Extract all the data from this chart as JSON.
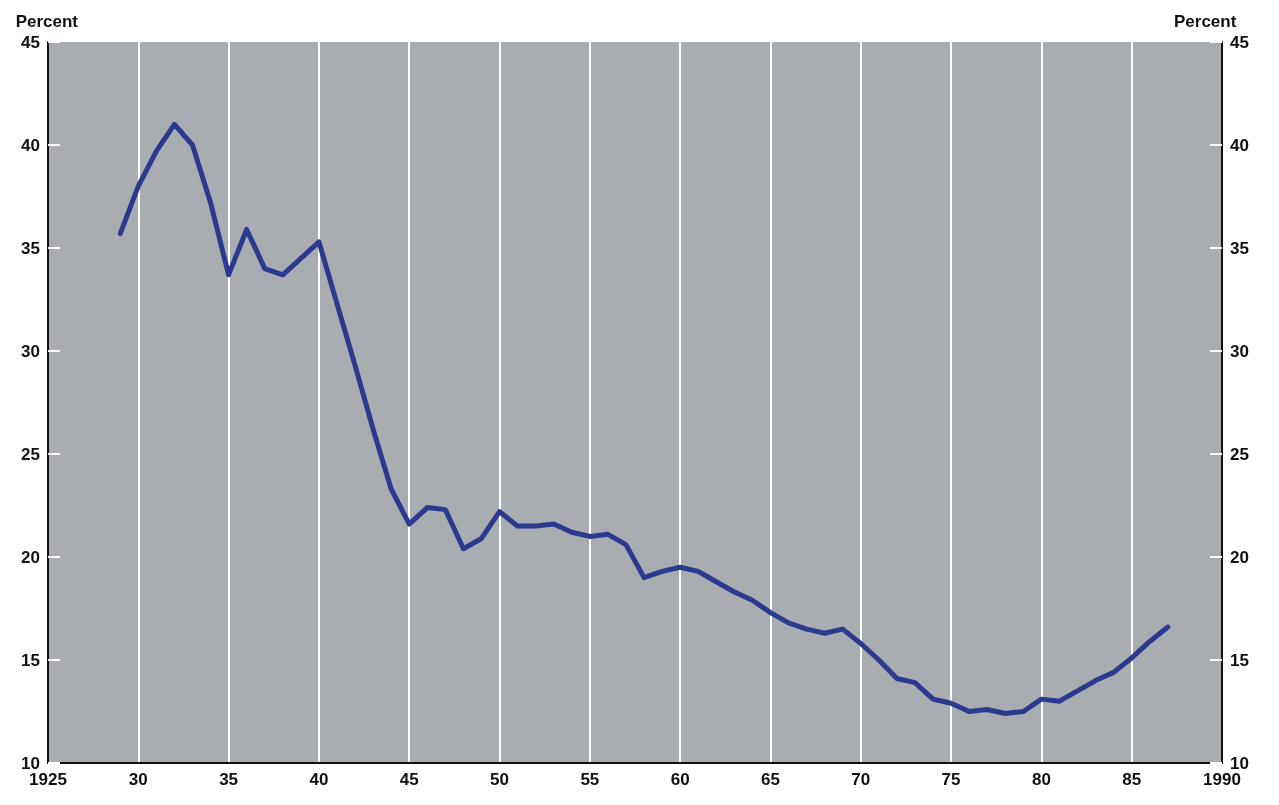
{
  "chart_data": {
    "type": "line",
    "ylabel": "Percent",
    "y2label": "Percent",
    "x": [
      1929,
      1930,
      1931,
      1932,
      1933,
      1934,
      1935,
      1936,
      1937,
      1938,
      1939,
      1940,
      1941,
      1942,
      1943,
      1944,
      1945,
      1946,
      1947,
      1948,
      1949,
      1950,
      1951,
      1952,
      1953,
      1954,
      1955,
      1956,
      1957,
      1958,
      1959,
      1960,
      1961,
      1962,
      1963,
      1964,
      1965,
      1966,
      1967,
      1968,
      1969,
      1970,
      1971,
      1972,
      1973,
      1974,
      1975,
      1976,
      1977,
      1978,
      1979,
      1980,
      1981,
      1982,
      1983,
      1984,
      1985,
      1986,
      1987
    ],
    "series": [
      {
        "color": "#2b3a8f",
        "values": [
          35.7,
          38.0,
          39.7,
          41.0,
          40.0,
          37.2,
          33.7,
          35.9,
          34.0,
          33.7,
          34.5,
          35.3,
          32.3,
          29.3,
          26.2,
          23.3,
          21.6,
          22.4,
          22.3,
          20.4,
          20.9,
          22.2,
          21.5,
          21.5,
          21.6,
          21.2,
          21.0,
          21.1,
          20.6,
          19.0,
          19.3,
          19.5,
          19.3,
          18.8,
          18.3,
          17.9,
          17.3,
          16.8,
          16.5,
          16.3,
          16.5,
          15.8,
          15.0,
          14.1,
          13.9,
          13.1,
          12.9,
          12.5,
          12.6,
          12.4,
          12.5,
          13.1,
          13.0,
          13.5,
          14.0,
          14.4,
          15.1,
          15.9,
          16.6
        ]
      }
    ],
    "xlim": [
      1925,
      1990
    ],
    "xticks": [
      1925,
      {
        "value": 1930,
        "label": "30"
      },
      {
        "value": 1935,
        "label": "35"
      },
      {
        "value": 1940,
        "label": "40"
      },
      {
        "value": 1945,
        "label": "45"
      },
      {
        "value": 1950,
        "label": "50"
      },
      {
        "value": 1955,
        "label": "55"
      },
      {
        "value": 1960,
        "label": "60"
      },
      {
        "value": 1965,
        "label": "65"
      },
      {
        "value": 1970,
        "label": "70"
      },
      {
        "value": 1975,
        "label": "75"
      },
      {
        "value": 1980,
        "label": "80"
      },
      {
        "value": 1985,
        "label": "85"
      },
      1990
    ],
    "ylim": [
      10,
      45
    ],
    "yticks": [
      10,
      15,
      20,
      25,
      30,
      35,
      40,
      45
    ],
    "y2lim": [
      10,
      45
    ],
    "y2ticks": [
      10,
      15,
      20,
      25,
      30,
      35,
      40,
      45
    ],
    "grid": "x",
    "legend": false,
    "marker": "none",
    "line_style": "solid"
  }
}
